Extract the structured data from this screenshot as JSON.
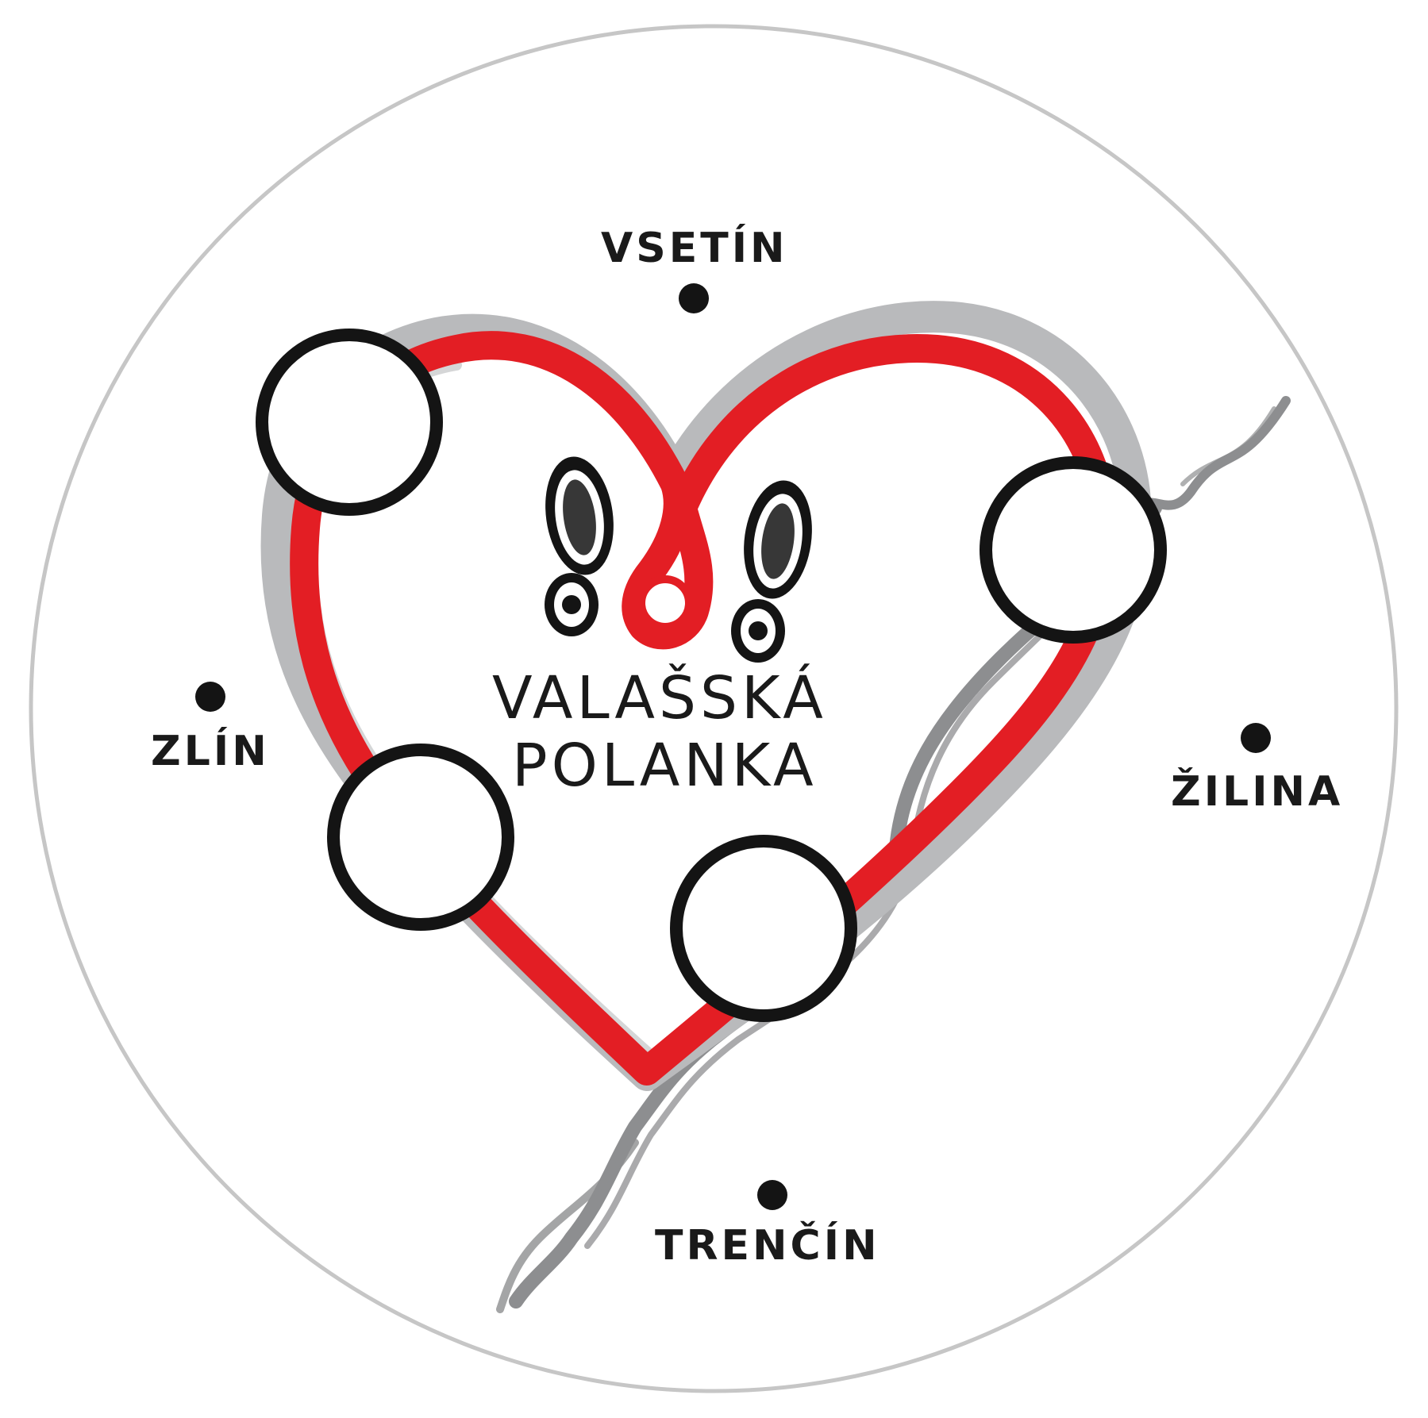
{
  "logo": {
    "line1": "VALAŠSKÁ",
    "line2": "POLANKA"
  },
  "cities": [
    {
      "id": "vsetin",
      "label": "VSETÍN"
    },
    {
      "id": "zlin",
      "label": "ZLÍN"
    },
    {
      "id": "zilina",
      "label": "ŽILINA"
    },
    {
      "id": "trencin",
      "label": "TRENČÍN"
    }
  ],
  "colors": {
    "heart": "#e31e24",
    "shadow": "#b9babc",
    "river": "#8d8e90",
    "ink": "#141414",
    "frame": "#c6c6c6"
  },
  "icons": [
    "footprint-left-icon",
    "footprint-right-icon"
  ]
}
